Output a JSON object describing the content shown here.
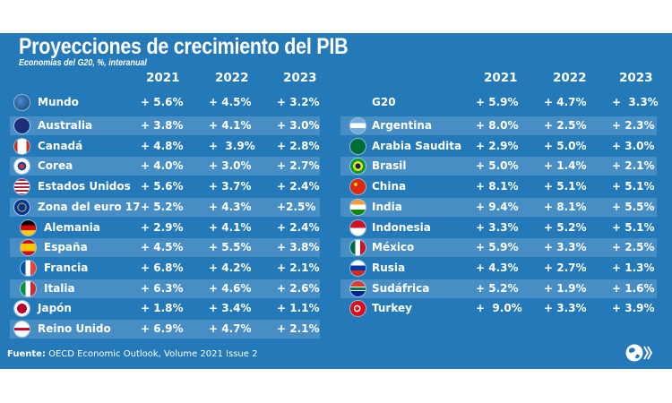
{
  "header": {
    "title": "Proyecciones de crecimiento del PIB",
    "subtitle": "Economías del G20, %, interanual"
  },
  "years": [
    "2021",
    "2022",
    "2023"
  ],
  "left_table": [
    {
      "name": "Mundo",
      "icon": "globe-icon",
      "v2021": "+ 5.6%",
      "v2022": "+ 4.5%",
      "v2023": "+ 3.2%"
    },
    {
      "name": "Australia",
      "icon": "australia-flag-icon",
      "v2021": "+ 3.8%",
      "v2022": "+ 4.1%",
      "v2023": "+ 3.0%"
    },
    {
      "name": "Canadá",
      "icon": "canada-flag-icon",
      "v2021": "+ 4.8%",
      "v2022": "+  3.9%",
      "v2023": "+ 2.8%"
    },
    {
      "name": "Corea",
      "icon": "korea-flag-icon",
      "v2021": "+ 4.0%",
      "v2022": "+ 3.0%",
      "v2023": "+ 2.7%"
    },
    {
      "name": "Estados Unidos",
      "icon": "usa-flag-icon",
      "v2021": "+ 5.6%",
      "v2022": "+ 3.7%",
      "v2023": "+ 2.4%"
    },
    {
      "name": "Zona del euro 17",
      "icon": "eu-flag-icon",
      "v2021": "+ 5.2%",
      "v2022": "+ 4.3%",
      "v2023": "+2.5%"
    },
    {
      "name": "Alemania",
      "icon": "germany-flag-icon",
      "v2021": "+ 2.9%",
      "v2022": "+ 4.1%",
      "v2023": "+ 2.4%",
      "indent": true
    },
    {
      "name": "España",
      "icon": "spain-flag-icon",
      "v2021": "+ 4.5%",
      "v2022": "+ 5.5%",
      "v2023": "+ 3.8%",
      "indent": true
    },
    {
      "name": "Francia",
      "icon": "france-flag-icon",
      "v2021": "+ 6.8%",
      "v2022": "+ 4.2%",
      "v2023": "+ 2.1%",
      "indent": true
    },
    {
      "name": "Italia",
      "icon": "italy-flag-icon",
      "v2021": "+ 6.3%",
      "v2022": "+ 4.6%",
      "v2023": "+ 2.6%",
      "indent": true
    },
    {
      "name": "Japón",
      "icon": "japan-flag-icon",
      "v2021": "+ 1.8%",
      "v2022": "+ 3.4%",
      "v2023": "+ 1.1%"
    },
    {
      "name": "Reino Unido",
      "icon": "uk-flag-icon",
      "v2021": "+ 6.9%",
      "v2022": "+ 4.7%",
      "v2023": "+ 2.1%"
    }
  ],
  "right_table": [
    {
      "name": "G20",
      "icon": "",
      "v2021": "+ 5.9%",
      "v2022": "+ 4.7%",
      "v2023": "+  3.3%"
    },
    {
      "name": "Argentina",
      "icon": "argentina-flag-icon",
      "v2021": "+ 8.0%",
      "v2022": "+ 2.5%",
      "v2023": "+ 2.3%"
    },
    {
      "name": "Arabia Saudita",
      "icon": "saudi-arabia-flag-icon",
      "v2021": "+ 2.9%",
      "v2022": "+ 5.0%",
      "v2023": "+ 3.0%"
    },
    {
      "name": "Brasil",
      "icon": "brazil-flag-icon",
      "v2021": "+ 5.0%",
      "v2022": "+ 1.4%",
      "v2023": "+ 2.1%"
    },
    {
      "name": "China",
      "icon": "china-flag-icon",
      "v2021": "+ 8.1%",
      "v2022": "+ 5.1%",
      "v2023": "+ 5.1%"
    },
    {
      "name": "India",
      "icon": "india-flag-icon",
      "v2021": "+ 9.4%",
      "v2022": "+ 8.1%",
      "v2023": "+ 5.5%"
    },
    {
      "name": "Indonesia",
      "icon": "indonesia-flag-icon",
      "v2021": "+ 3.3%",
      "v2022": "+ 5.2%",
      "v2023": "+ 5.1%"
    },
    {
      "name": "México",
      "icon": "mexico-flag-icon",
      "v2021": "+ 5.9%",
      "v2022": "+ 3.3%",
      "v2023": "+ 2.5%"
    },
    {
      "name": "Rusia",
      "icon": "russia-flag-icon",
      "v2021": "+ 4.3%",
      "v2022": "+ 2.7%",
      "v2023": "+ 1.3%"
    },
    {
      "name": "Sudáfrica",
      "icon": "south-africa-flag-icon",
      "v2021": "+ 5.2%",
      "v2022": "+ 1.9%",
      "v2023": "+ 1.6%"
    },
    {
      "name": "Turkey",
      "icon": "turkey-flag-icon",
      "v2021": "+  9.0%",
      "v2022": "+ 3.3%",
      "v2023": "+ 3.9%"
    }
  ],
  "footer": {
    "source_label": "Fuente:",
    "source_text": " OECD Economic Outlook, Volume 2021 Issue 2"
  },
  "colors": {
    "panel": "#2479b9",
    "stripe": "#4a8fc6",
    "text": "#ffffff"
  }
}
